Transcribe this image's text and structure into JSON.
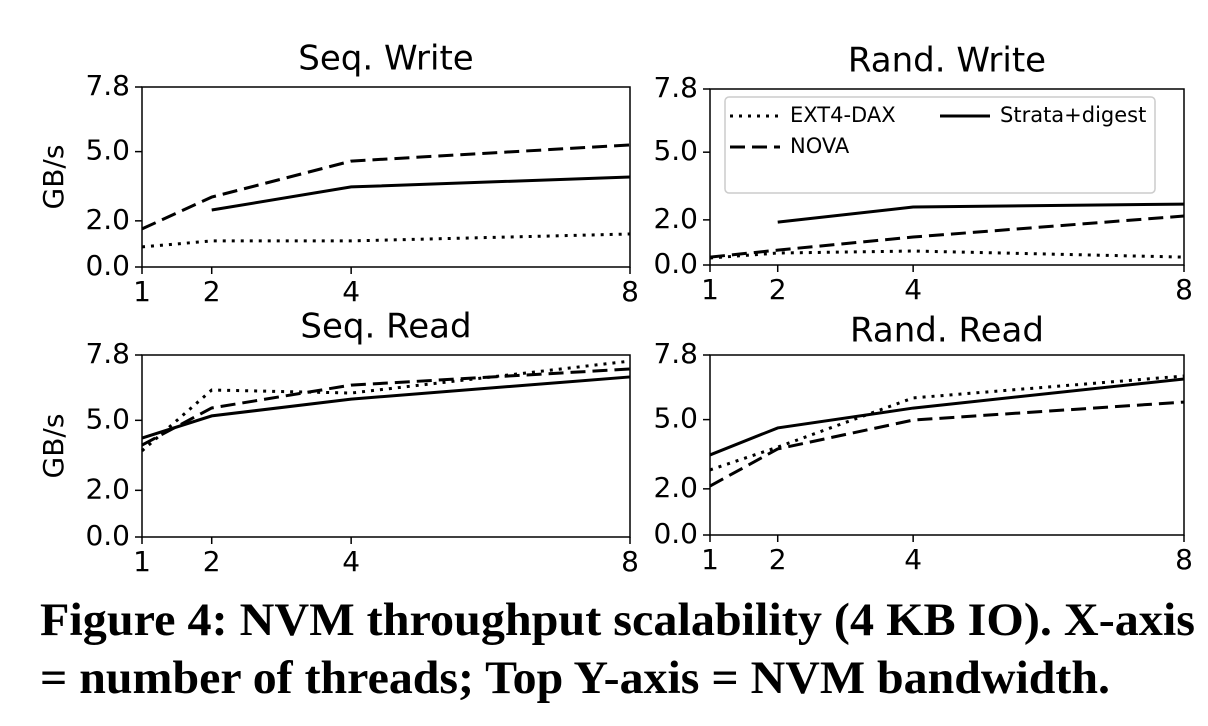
{
  "chart_data": [
    {
      "type": "line",
      "title": "Seq. Write",
      "ylabel": "GB/s",
      "x": [
        1,
        2,
        4,
        8
      ],
      "xlim": [
        1,
        8
      ],
      "xticks": [
        1,
        2,
        4,
        8
      ],
      "ylim": [
        0,
        7.8
      ],
      "yticks": [
        {
          "value": 0,
          "label": "0.0"
        },
        {
          "value": 2,
          "label": "2.0"
        },
        {
          "value": 5,
          "label": "5.0"
        },
        7.8
      ],
      "series": [
        {
          "name": "EXT4-DAX",
          "color": "#000000",
          "linestyle": "dotted",
          "values": [
            0.87,
            1.13,
            1.13,
            1.43
          ]
        },
        {
          "name": "NOVA",
          "color": "#000000",
          "linestyle": "dashed",
          "values": [
            1.65,
            3.03,
            4.59,
            5.29
          ]
        },
        {
          "name": "Strata+digest",
          "color": "#000000",
          "linestyle": "solid",
          "values": [
            null,
            2.47,
            3.47,
            3.9
          ]
        }
      ]
    },
    {
      "type": "line",
      "title": "Rand. Write",
      "legend": "upper right",
      "x": [
        1,
        2,
        4,
        8
      ],
      "xlim": [
        1,
        8
      ],
      "xticks": [
        1,
        2,
        4,
        8
      ],
      "ylim": [
        0,
        7.8
      ],
      "yticks": [
        {
          "value": 0,
          "label": "0.0"
        },
        {
          "value": 2,
          "label": "2.0"
        },
        {
          "value": 5,
          "label": "5.0"
        },
        7.8
      ],
      "series": [
        {
          "name": "EXT4-DAX",
          "color": "#000000",
          "linestyle": "dotted",
          "values": [
            0.31,
            0.53,
            0.62,
            0.35
          ]
        },
        {
          "name": "NOVA",
          "color": "#000000",
          "linestyle": "dashed",
          "values": [
            0.35,
            0.66,
            1.24,
            2.17
          ]
        },
        {
          "name": "Strata+digest",
          "color": "#000000",
          "linestyle": "solid",
          "values": [
            null,
            1.9,
            2.57,
            2.7
          ]
        }
      ]
    },
    {
      "type": "line",
      "title": "Seq. Read",
      "ylabel": "GB/s",
      "x": [
        1,
        2,
        4,
        8
      ],
      "xlim": [
        1,
        8
      ],
      "xticks": [
        1,
        2,
        4,
        8
      ],
      "ylim": [
        0,
        7.8
      ],
      "yticks": [
        {
          "value": 0,
          "label": "0.0"
        },
        {
          "value": 2,
          "label": "2.0"
        },
        {
          "value": 5,
          "label": "5.0"
        },
        7.8
      ],
      "series": [
        {
          "name": "EXT4-DAX",
          "color": "#000000",
          "linestyle": "dotted",
          "values": [
            3.69,
            6.3,
            6.17,
            7.54
          ]
        },
        {
          "name": "NOVA",
          "color": "#000000",
          "linestyle": "dashed",
          "values": [
            3.94,
            5.53,
            6.51,
            7.2
          ]
        },
        {
          "name": "Strata+digest",
          "color": "#000000",
          "linestyle": "solid",
          "values": [
            4.24,
            5.19,
            5.91,
            6.86
          ]
        }
      ]
    },
    {
      "type": "line",
      "title": "Rand. Read",
      "x": [
        1,
        2,
        4,
        8
      ],
      "xlim": [
        1,
        8
      ],
      "xticks": [
        1,
        2,
        4,
        8
      ],
      "ylim": [
        0,
        7.8
      ],
      "yticks": [
        {
          "value": 0,
          "label": "0.0"
        },
        {
          "value": 2,
          "label": "2.0"
        },
        {
          "value": 5,
          "label": "5.0"
        },
        7.8
      ],
      "series": [
        {
          "name": "EXT4-DAX",
          "color": "#000000",
          "linestyle": "dotted",
          "values": [
            2.82,
            3.81,
            5.94,
            6.89
          ]
        },
        {
          "name": "NOVA",
          "color": "#000000",
          "linestyle": "dashed",
          "values": [
            2.12,
            3.73,
            4.98,
            5.76
          ]
        },
        {
          "name": "Strata+digest",
          "color": "#000000",
          "linestyle": "solid",
          "values": [
            3.47,
            4.64,
            5.5,
            6.76
          ]
        }
      ]
    }
  ],
  "caption": [
    "Figure 4: NVM throughput scalability (4 KB IO). X-axis",
    "= number of threads; Top Y-axis = NVM bandwidth."
  ]
}
